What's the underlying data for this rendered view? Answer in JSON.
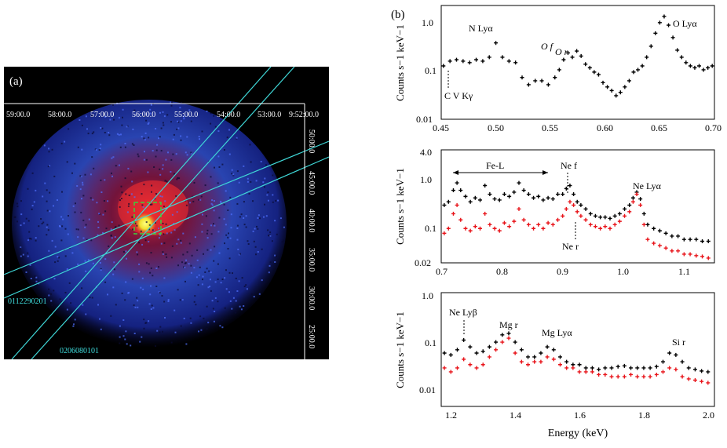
{
  "panel_a": {
    "label": "(a)",
    "top_axis_labels": [
      "59:00.0",
      "58:00.0",
      "57:00.0",
      "56:00.0",
      "55:00.0",
      "54:00.0",
      "53:00.0",
      "9:52:00.0"
    ],
    "right_axis_labels": [
      "50:00.0",
      "45:00.0",
      "40:00.0",
      "35:00.0",
      "30:00.0",
      "25:00.0"
    ],
    "obs_ids": [
      "0112290201",
      "0206080101"
    ],
    "colors": {
      "background": "#000000",
      "slit": "#3fd7d7",
      "box": "#3ccf3c",
      "core": "#f0f040",
      "label": "#40e0e0"
    }
  },
  "panel_b_label": "(b)",
  "xlabel_shared": "Energy (keV)",
  "chart_data": [
    {
      "type": "scatter",
      "title": "",
      "xlabel": "",
      "ylabel": "Counts s−1 keV−1",
      "xlim": [
        0.45,
        0.7
      ],
      "ylim": [
        0.01,
        2.0
      ],
      "yscale": "log",
      "xticks": [
        "0.45",
        "0.50",
        "0.55",
        "0.60",
        "0.65",
        "0.70"
      ],
      "yticks": [
        "0.01",
        "0.1",
        "1.0"
      ],
      "annotations": [
        "N Lyα",
        "O f",
        "O r",
        "O Lyα",
        "C V Kγ"
      ],
      "series": [
        {
          "name": "0112290201",
          "color": "#000000",
          "x": [
            0.452,
            0.458,
            0.464,
            0.47,
            0.476,
            0.482,
            0.488,
            0.494,
            0.5,
            0.506,
            0.512,
            0.518,
            0.524,
            0.53,
            0.536,
            0.542,
            0.548,
            0.554,
            0.558,
            0.562,
            0.566,
            0.57,
            0.574,
            0.578,
            0.582,
            0.586,
            0.59,
            0.594,
            0.598,
            0.602,
            0.606,
            0.61,
            0.614,
            0.618,
            0.622,
            0.626,
            0.63,
            0.634,
            0.638,
            0.642,
            0.646,
            0.65,
            0.654,
            0.658,
            0.662,
            0.666,
            0.67,
            0.674,
            0.678,
            0.682,
            0.686,
            0.69,
            0.694,
            0.698
          ],
          "y": [
            0.12,
            0.15,
            0.16,
            0.15,
            0.14,
            0.16,
            0.15,
            0.18,
            0.35,
            0.18,
            0.15,
            0.14,
            0.07,
            0.05,
            0.06,
            0.06,
            0.05,
            0.07,
            0.1,
            0.16,
            0.22,
            0.18,
            0.24,
            0.19,
            0.13,
            0.11,
            0.09,
            0.08,
            0.055,
            0.045,
            0.038,
            0.03,
            0.035,
            0.045,
            0.06,
            0.09,
            0.1,
            0.12,
            0.18,
            0.3,
            0.55,
            0.9,
            1.2,
            0.8,
            0.45,
            0.25,
            0.18,
            0.14,
            0.12,
            0.11,
            0.12,
            0.1,
            0.11,
            0.12
          ]
        }
      ]
    },
    {
      "type": "scatter",
      "title": "",
      "xlabel": "",
      "ylabel": "Counts s−1 keV−1",
      "xlim": [
        0.7,
        1.15
      ],
      "ylim": [
        0.02,
        4.0
      ],
      "yscale": "log",
      "xticks": [
        "0.7",
        "0.8",
        "0.9",
        "1.0",
        "1.1"
      ],
      "yticks": [
        "0.02",
        "0.1",
        "1.0",
        "4.0"
      ],
      "annotations": [
        "Fe-L",
        "Ne f",
        "Ne r",
        "Ne Lyα"
      ],
      "series": [
        {
          "name": "0112290201",
          "color": "#000000",
          "x": [
            0.705,
            0.712,
            0.72,
            0.726,
            0.732,
            0.74,
            0.748,
            0.756,
            0.764,
            0.772,
            0.78,
            0.788,
            0.796,
            0.804,
            0.812,
            0.82,
            0.828,
            0.836,
            0.844,
            0.852,
            0.86,
            0.868,
            0.876,
            0.884,
            0.892,
            0.9,
            0.906,
            0.912,
            0.918,
            0.924,
            0.93,
            0.938,
            0.946,
            0.954,
            0.962,
            0.97,
            0.978,
            0.986,
            0.994,
            1.002,
            1.01,
            1.016,
            1.022,
            1.028,
            1.034,
            1.04,
            1.05,
            1.06,
            1.07,
            1.08,
            1.09,
            1.1,
            1.11,
            1.12,
            1.13,
            1.14
          ],
          "y": [
            0.3,
            0.35,
            0.6,
            0.85,
            0.6,
            0.45,
            0.35,
            0.42,
            0.38,
            0.75,
            0.5,
            0.4,
            0.38,
            0.5,
            0.45,
            0.55,
            0.85,
            0.6,
            0.5,
            0.42,
            0.45,
            0.38,
            0.42,
            0.4,
            0.5,
            0.5,
            0.65,
            0.75,
            0.5,
            0.35,
            0.3,
            0.25,
            0.2,
            0.18,
            0.17,
            0.17,
            0.16,
            0.18,
            0.2,
            0.25,
            0.3,
            0.42,
            0.55,
            0.4,
            0.2,
            0.12,
            0.1,
            0.09,
            0.08,
            0.07,
            0.07,
            0.06,
            0.06,
            0.06,
            0.055,
            0.055
          ]
        },
        {
          "name": "0206080101",
          "color": "#e8141a",
          "x": [
            0.705,
            0.712,
            0.72,
            0.726,
            0.732,
            0.74,
            0.748,
            0.756,
            0.764,
            0.772,
            0.78,
            0.788,
            0.796,
            0.804,
            0.812,
            0.82,
            0.828,
            0.836,
            0.844,
            0.852,
            0.86,
            0.868,
            0.876,
            0.884,
            0.892,
            0.9,
            0.906,
            0.912,
            0.918,
            0.924,
            0.93,
            0.938,
            0.946,
            0.954,
            0.962,
            0.97,
            0.978,
            0.986,
            0.994,
            1.002,
            1.01,
            1.016,
            1.022,
            1.028,
            1.034,
            1.04,
            1.05,
            1.06,
            1.07,
            1.08,
            1.09,
            1.1,
            1.11,
            1.12,
            1.13,
            1.14
          ],
          "y": [
            0.08,
            0.1,
            0.2,
            0.3,
            0.15,
            0.1,
            0.09,
            0.11,
            0.1,
            0.2,
            0.12,
            0.1,
            0.09,
            0.13,
            0.11,
            0.14,
            0.25,
            0.15,
            0.12,
            0.1,
            0.12,
            0.1,
            0.13,
            0.12,
            0.15,
            0.18,
            0.25,
            0.35,
            0.3,
            0.22,
            0.18,
            0.15,
            0.12,
            0.11,
            0.1,
            0.11,
            0.1,
            0.12,
            0.14,
            0.18,
            0.22,
            0.35,
            0.5,
            0.3,
            0.12,
            0.06,
            0.05,
            0.045,
            0.04,
            0.035,
            0.035,
            0.03,
            0.03,
            0.028,
            0.027,
            0.025
          ]
        }
      ]
    },
    {
      "type": "scatter",
      "title": "",
      "xlabel": "Energy (keV)",
      "ylabel": "Counts s−1 keV−1",
      "xlim": [
        1.15,
        2.0
      ],
      "ylim": [
        0.005,
        1.0
      ],
      "yscale": "log",
      "xticks": [
        "1.2",
        "1.4",
        "1.6",
        "1.8",
        "2.0"
      ],
      "yticks": [
        "0.01",
        "0.1",
        "1.0"
      ],
      "annotations": [
        "Ne Lyβ",
        "Mg r",
        "Mg Lyα",
        "Si r"
      ],
      "series": [
        {
          "name": "0112290201",
          "color": "#000000",
          "x": [
            1.16,
            1.18,
            1.2,
            1.22,
            1.24,
            1.26,
            1.28,
            1.3,
            1.32,
            1.34,
            1.36,
            1.38,
            1.4,
            1.42,
            1.44,
            1.46,
            1.48,
            1.5,
            1.52,
            1.54,
            1.56,
            1.58,
            1.6,
            1.62,
            1.64,
            1.66,
            1.68,
            1.7,
            1.72,
            1.74,
            1.76,
            1.78,
            1.8,
            1.82,
            1.84,
            1.86,
            1.88,
            1.9,
            1.92,
            1.94,
            1.96,
            1.98
          ],
          "y": [
            0.06,
            0.055,
            0.07,
            0.11,
            0.08,
            0.06,
            0.065,
            0.08,
            0.1,
            0.14,
            0.15,
            0.1,
            0.07,
            0.05,
            0.05,
            0.06,
            0.08,
            0.07,
            0.05,
            0.04,
            0.035,
            0.035,
            0.03,
            0.03,
            0.028,
            0.03,
            0.03,
            0.032,
            0.033,
            0.03,
            0.03,
            0.03,
            0.03,
            0.032,
            0.04,
            0.06,
            0.055,
            0.04,
            0.03,
            0.028,
            0.026,
            0.025
          ]
        },
        {
          "name": "0206080101",
          "color": "#e8141a",
          "x": [
            1.16,
            1.18,
            1.2,
            1.22,
            1.24,
            1.26,
            1.28,
            1.3,
            1.32,
            1.34,
            1.36,
            1.38,
            1.4,
            1.42,
            1.44,
            1.46,
            1.48,
            1.5,
            1.52,
            1.54,
            1.56,
            1.58,
            1.6,
            1.62,
            1.64,
            1.66,
            1.68,
            1.7,
            1.72,
            1.74,
            1.76,
            1.78,
            1.8,
            1.82,
            1.84,
            1.86,
            1.88,
            1.9,
            1.92,
            1.94,
            1.96,
            1.98
          ],
          "y": [
            0.03,
            0.025,
            0.03,
            0.045,
            0.035,
            0.03,
            0.035,
            0.05,
            0.07,
            0.1,
            0.12,
            0.06,
            0.04,
            0.035,
            0.04,
            0.04,
            0.05,
            0.045,
            0.035,
            0.03,
            0.03,
            0.025,
            0.025,
            0.025,
            0.022,
            0.022,
            0.02,
            0.02,
            0.02,
            0.022,
            0.02,
            0.02,
            0.02,
            0.022,
            0.025,
            0.03,
            0.028,
            0.02,
            0.018,
            0.017,
            0.016,
            0.015
          ]
        }
      ]
    }
  ]
}
